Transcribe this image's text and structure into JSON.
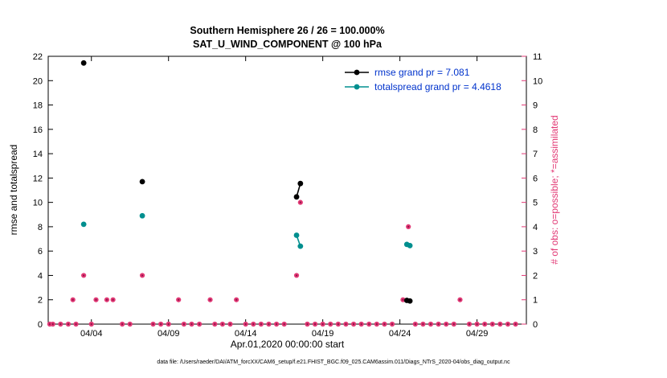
{
  "footer": "data file: /Users/raeder/DAI/ATM_forcXX/CAM6_setup/f.e21.FHIST_BGC.f09_025.CAM6assim.011/Diags_NTrS_2020-04/obs_diag_output.nc",
  "chart_data": {
    "type": "line",
    "title_line1": "Southern Hemisphere 26 / 26 = 100.000%",
    "title_line2": "SAT_U_WIND_COMPONENT @ 100 hPa",
    "xlabel": "Apr.01,2020 00:00:00 start",
    "ylabel_left": "rmse and totalspread",
    "ylabel_right": "# of obs: o=possible; *=assimilated",
    "grid": false,
    "legend_position": "top-right-inside",
    "xlim_days": [
      1.2,
      32.2
    ],
    "xticks": [
      {
        "day": 4,
        "label": "04/04"
      },
      {
        "day": 9,
        "label": "04/09"
      },
      {
        "day": 14,
        "label": "04/14"
      },
      {
        "day": 19,
        "label": "04/19"
      },
      {
        "day": 24,
        "label": "04/24"
      },
      {
        "day": 29,
        "label": "04/29"
      }
    ],
    "ylim_left": [
      0,
      22
    ],
    "yticks_left": [
      0,
      2,
      4,
      6,
      8,
      10,
      12,
      14,
      16,
      18,
      20,
      22
    ],
    "ylim_right": [
      0,
      11
    ],
    "yticks_right": [
      0,
      1,
      2,
      3,
      4,
      5,
      6,
      7,
      8,
      9,
      10,
      11
    ],
    "colors": {
      "rmse": "#000000",
      "totalspread": "#008f8f",
      "obs": "#e23a76",
      "obs_center": "#8f1147",
      "legend_text": "#0033cc",
      "axis": "#000000"
    },
    "series": [
      {
        "name": "rmse grand pr = 7.081",
        "color_key": "rmse",
        "axis": "left",
        "grand_value": 7.081,
        "segments": [
          [
            [
              3.5,
              21.45
            ]
          ],
          [
            [
              7.3,
              11.7
            ]
          ],
          [
            [
              17.3,
              10.45
            ],
            [
              17.55,
              11.55
            ]
          ],
          [
            [
              24.45,
              1.95
            ],
            [
              24.65,
              1.9
            ]
          ]
        ]
      },
      {
        "name": "totalspread grand pr = 4.4618",
        "color_key": "totalspread",
        "axis": "left",
        "grand_value": 4.4618,
        "segments": [
          [
            [
              3.5,
              8.2
            ]
          ],
          [
            [
              7.3,
              8.9
            ]
          ],
          [
            [
              17.3,
              7.3
            ],
            [
              17.55,
              6.4
            ]
          ],
          [
            [
              24.45,
              6.55
            ],
            [
              24.65,
              6.45
            ]
          ]
        ]
      }
    ],
    "obs_counts": {
      "axis": "right",
      "points": [
        [
          1.3,
          0
        ],
        [
          1.5,
          0
        ],
        [
          2.0,
          0
        ],
        [
          2.5,
          0
        ],
        [
          2.8,
          1
        ],
        [
          3.0,
          0
        ],
        [
          3.5,
          2
        ],
        [
          4.0,
          0
        ],
        [
          4.3,
          1
        ],
        [
          5.0,
          1
        ],
        [
          5.4,
          1
        ],
        [
          6.0,
          0
        ],
        [
          6.5,
          0
        ],
        [
          7.3,
          2
        ],
        [
          8.0,
          0
        ],
        [
          8.5,
          0
        ],
        [
          9.0,
          0
        ],
        [
          9.65,
          1
        ],
        [
          10.0,
          0
        ],
        [
          10.5,
          0
        ],
        [
          11.0,
          0
        ],
        [
          11.7,
          1
        ],
        [
          12.0,
          0
        ],
        [
          12.5,
          0
        ],
        [
          13.0,
          0
        ],
        [
          13.4,
          1
        ],
        [
          14.0,
          0
        ],
        [
          14.5,
          0
        ],
        [
          15.0,
          0
        ],
        [
          15.5,
          0
        ],
        [
          16.0,
          0
        ],
        [
          16.5,
          0
        ],
        [
          17.3,
          2
        ],
        [
          17.55,
          5
        ],
        [
          18.0,
          0
        ],
        [
          18.5,
          0
        ],
        [
          19.0,
          0
        ],
        [
          19.5,
          0
        ],
        [
          20.0,
          0
        ],
        [
          20.5,
          0
        ],
        [
          21.0,
          0
        ],
        [
          21.5,
          0
        ],
        [
          22.0,
          0
        ],
        [
          22.5,
          0
        ],
        [
          23.0,
          0
        ],
        [
          23.5,
          0
        ],
        [
          24.2,
          1
        ],
        [
          24.55,
          4
        ],
        [
          25.0,
          0
        ],
        [
          25.5,
          0
        ],
        [
          26.0,
          0
        ],
        [
          26.5,
          0
        ],
        [
          27.0,
          0
        ],
        [
          27.5,
          0
        ],
        [
          27.9,
          1
        ],
        [
          28.5,
          0
        ],
        [
          29.0,
          0
        ],
        [
          29.5,
          0
        ],
        [
          30.0,
          0
        ],
        [
          30.5,
          0
        ],
        [
          31.0,
          0
        ],
        [
          31.5,
          0
        ]
      ]
    }
  }
}
